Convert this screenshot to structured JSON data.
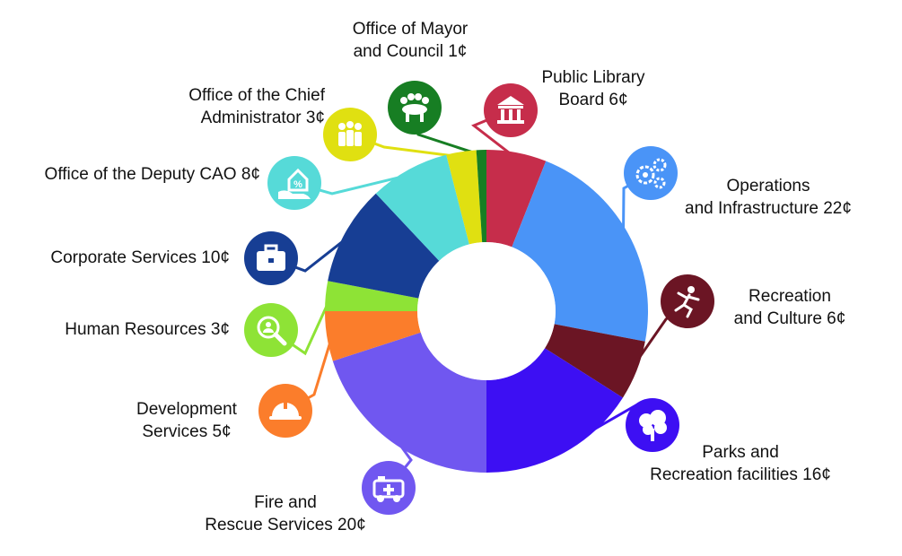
{
  "chart_data": {
    "type": "pie",
    "variant": "donut",
    "unit": "¢",
    "slices": [
      {
        "key": "public_library",
        "lines": [
          "Public Library",
          "Board 6¢"
        ],
        "value": 6,
        "color": "#C62D4B",
        "icon": "library-building-icon"
      },
      {
        "key": "operations",
        "lines": [
          "Operations",
          "and Infrastructure 22¢"
        ],
        "value": 22,
        "color": "#4A94F7",
        "icon": "gears-icon"
      },
      {
        "key": "recreation_culture",
        "lines": [
          "Recreation",
          "and Culture 6¢"
        ],
        "value": 6,
        "color": "#6B1524",
        "icon": "running-person-icon"
      },
      {
        "key": "parks",
        "lines": [
          "Parks and",
          "Recreation facilities 16¢"
        ],
        "value": 16,
        "color": "#3D0FF3",
        "icon": "tree-icon"
      },
      {
        "key": "fire",
        "lines": [
          "Fire and",
          "Rescue Services 20¢"
        ],
        "value": 20,
        "color": "#7057F0",
        "icon": "ambulance-icon"
      },
      {
        "key": "development",
        "lines": [
          "Development",
          "Services 5¢"
        ],
        "value": 5,
        "color": "#FB7D2B",
        "icon": "hard-hat-icon"
      },
      {
        "key": "human_resources",
        "lines": [
          "Human Resources 3¢"
        ],
        "value": 3,
        "color": "#8EE336",
        "icon": "magnifier-person-icon"
      },
      {
        "key": "corporate",
        "lines": [
          "Corporate Services 10¢"
        ],
        "value": 10,
        "color": "#173E94",
        "icon": "briefcase-icon"
      },
      {
        "key": "deputy_cao",
        "lines": [
          "Office of the Deputy CAO 8¢"
        ],
        "value": 8,
        "color": "#56DAD8",
        "icon": "hand-house-percent-icon"
      },
      {
        "key": "chief_admin",
        "lines": [
          "Office of the Chief",
          "Administrator 3¢"
        ],
        "value": 3,
        "color": "#E0E011",
        "icon": "people-group-icon"
      },
      {
        "key": "mayor_council",
        "lines": [
          "Office of Mayor",
          "and Council 1¢"
        ],
        "value": 1,
        "color": "#177E23",
        "icon": "council-table-icon"
      }
    ]
  }
}
